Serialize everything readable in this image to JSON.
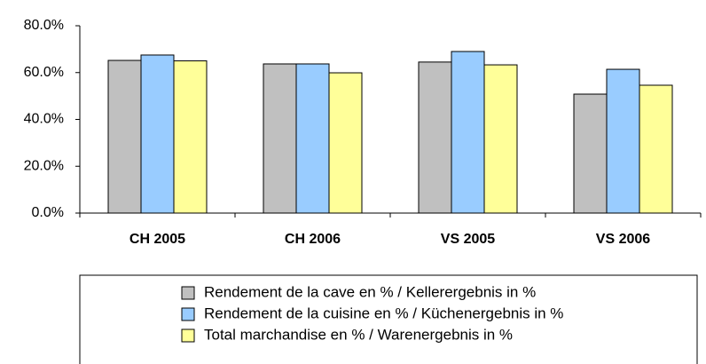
{
  "chart_data": {
    "type": "bar",
    "categories": [
      "CH 2005",
      "CH 2006",
      "VS 2005",
      "VS 2006"
    ],
    "series": [
      {
        "name": "Rendement de la cave en % / Kellerergebnis in %",
        "color": "#c0c0c0",
        "values": [
          65.2,
          63.7,
          64.5,
          50.8
        ]
      },
      {
        "name": "Rendement de la cuisine en % / Küchenergebnis in %",
        "color": "#99ccff",
        "values": [
          67.5,
          63.7,
          69.0,
          61.4
        ]
      },
      {
        "name": "Total marchandise en % / Warenergebnis in %",
        "color": "#ffff99",
        "values": [
          65.0,
          59.9,
          63.3,
          54.6
        ]
      }
    ],
    "ylim": [
      0,
      80
    ],
    "yticks": [
      {
        "value": 0,
        "label": "0.0%"
      },
      {
        "value": 20,
        "label": "20.0%"
      },
      {
        "value": 40,
        "label": "40.0%"
      },
      {
        "value": 60,
        "label": "60.0%"
      },
      {
        "value": 80,
        "label": "80.0%"
      }
    ],
    "grid": false
  }
}
